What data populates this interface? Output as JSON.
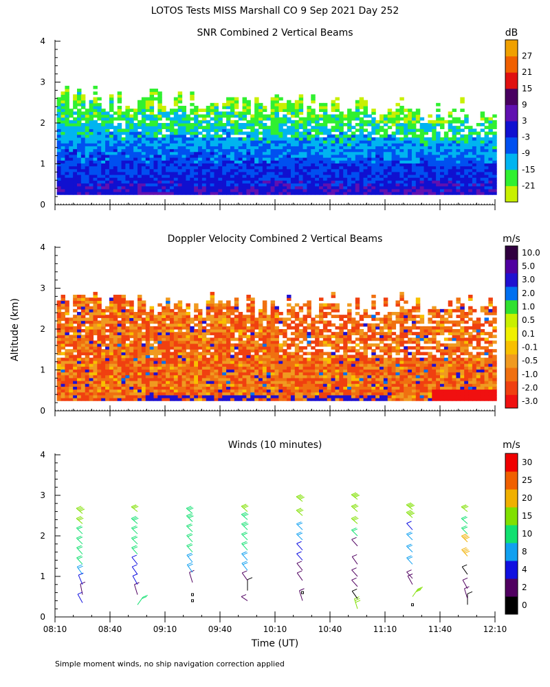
{
  "figure_title": "LOTOS Tests MISS Marshall CO   9 Sep 2021 Day 252",
  "shared_ylabel": "Altitude (km)",
  "footnote": "Simple moment winds, no ship navigation correction applied",
  "x_axis": {
    "label": "Time (UT)",
    "ticks": [
      "08:10",
      "08:40",
      "09:10",
      "09:40",
      "10:10",
      "10:40",
      "11:10",
      "11:40",
      "12:10"
    ],
    "range_minutes": [
      490,
      730
    ]
  },
  "y_axis": {
    "ticks": [
      "0",
      "1",
      "2",
      "3",
      "4"
    ],
    "range_km": [
      0,
      4
    ]
  },
  "colors": {
    "snr": [
      "#c8f000",
      "#30f030",
      "#00b4f0",
      "#0050f0",
      "#1010d0",
      "#6010b0",
      "#480060",
      "#e01010",
      "#f06000",
      "#f0a000"
    ],
    "velocity": [
      "#f01010",
      "#f04010",
      "#f07010",
      "#f09a20",
      "#f8c000",
      "#f0f000",
      "#c8f000",
      "#30e030",
      "#0070f0",
      "#2010d0",
      "#5000a0",
      "#300040"
    ],
    "winds": [
      "#000000",
      "#500060",
      "#1010e0",
      "#10a0f0",
      "#10e070",
      "#80e000",
      "#f0b000",
      "#f06000",
      "#f00000"
    ]
  },
  "chart_data": [
    {
      "type": "heatmap",
      "title": "SNR Combined 2 Vertical Beams",
      "units": "dB",
      "xlabel": "",
      "ylabel": "Altitude (km)",
      "xlim_minutes": [
        490,
        730
      ],
      "ylim": [
        0,
        4
      ],
      "colorbar_labels": [
        "-21",
        "-15",
        "-9",
        "-3",
        "3",
        "9",
        "15",
        "21",
        "27"
      ],
      "colorbar_values": [
        -21,
        -15,
        -9,
        -3,
        3,
        9,
        15,
        21,
        27
      ],
      "data_altitude_range_km": [
        0.25,
        2.8
      ],
      "profile_by_altitude_km": [
        {
          "alt": 0.3,
          "snr": 2
        },
        {
          "alt": 0.6,
          "snr": -2
        },
        {
          "alt": 1.0,
          "snr": -4
        },
        {
          "alt": 1.5,
          "snr": -9
        },
        {
          "alt": 2.0,
          "snr": -15
        },
        {
          "alt": 2.5,
          "snr": -19
        }
      ]
    },
    {
      "type": "heatmap",
      "title": "Doppler Velocity Combined 2 Vertical Beams",
      "units": "m/s",
      "xlabel": "",
      "ylabel": "Altitude (km)",
      "xlim_minutes": [
        490,
        730
      ],
      "ylim": [
        0,
        4
      ],
      "colorbar_labels": [
        "-3.0",
        "-2.0",
        "-1.0",
        "-0.5",
        "-0.1",
        "0.1",
        "0.5",
        "1.0",
        "2.0",
        "3.0",
        "5.0",
        "10.0"
      ],
      "colorbar_values": [
        -3.0,
        -2.0,
        -1.0,
        -0.5,
        -0.1,
        0.1,
        0.5,
        1.0,
        2.0,
        3.0,
        5.0,
        10.0
      ],
      "data_altitude_range_km": [
        0.25,
        2.8
      ],
      "typical_velocity_m_s": -0.8
    },
    {
      "type": "scatter",
      "title": "Winds (10 minutes)",
      "units": "m/s",
      "xlabel": "Time (UT)",
      "ylabel": "Altitude (km)",
      "xlim_minutes": [
        490,
        730
      ],
      "ylim": [
        0,
        4
      ],
      "colorbar_labels": [
        "0",
        "2",
        "4",
        "8",
        "10",
        "15",
        "20",
        "25",
        "30"
      ],
      "colorbar_values": [
        0,
        2,
        4,
        8,
        10,
        15,
        20,
        25,
        30
      ],
      "profiles": [
        {
          "time": "08:25",
          "t": 505,
          "winds": [
            {
              "alt": 0.35,
              "spd": 4,
              "dir": 230
            },
            {
              "alt": 0.55,
              "spd": 3,
              "dir": 200
            },
            {
              "alt": 0.8,
              "spd": 6,
              "dir": 220
            },
            {
              "alt": 1.05,
              "spd": 9,
              "dir": 240
            },
            {
              "alt": 1.3,
              "spd": 10,
              "dir": 250
            },
            {
              "alt": 1.55,
              "spd": 11,
              "dir": 250
            },
            {
              "alt": 1.8,
              "spd": 12,
              "dir": 255
            },
            {
              "alt": 2.05,
              "spd": 12,
              "dir": 255
            },
            {
              "alt": 2.3,
              "spd": 16,
              "dir": 260
            },
            {
              "alt": 2.55,
              "spd": 18,
              "dir": 260
            }
          ]
        },
        {
          "time": "08:55",
          "t": 535,
          "winds": [
            {
              "alt": 0.3,
              "spd": 10,
              "dir": 60
            },
            {
              "alt": 0.55,
              "spd": 3,
              "dir": 210
            },
            {
              "alt": 0.8,
              "spd": 5,
              "dir": 230
            },
            {
              "alt": 1.05,
              "spd": 6,
              "dir": 240
            },
            {
              "alt": 1.3,
              "spd": 7,
              "dir": 245
            },
            {
              "alt": 1.55,
              "spd": 10,
              "dir": 250
            },
            {
              "alt": 1.8,
              "spd": 11,
              "dir": 255
            },
            {
              "alt": 2.05,
              "spd": 12,
              "dir": 255
            },
            {
              "alt": 2.3,
              "spd": 14,
              "dir": 260
            },
            {
              "alt": 2.6,
              "spd": 17,
              "dir": 265
            }
          ]
        },
        {
          "time": "09:25",
          "t": 565,
          "winds": [
            {
              "alt": 0.4,
              "spd": 0,
              "dir": 0
            },
            {
              "alt": 0.55,
              "spd": 0,
              "dir": 0
            },
            {
              "alt": 0.85,
              "spd": 3,
              "dir": 330
            },
            {
              "alt": 1.1,
              "spd": 9,
              "dir": 240
            },
            {
              "alt": 1.35,
              "spd": 9,
              "dir": 245
            },
            {
              "alt": 1.6,
              "spd": 10,
              "dir": 250
            },
            {
              "alt": 1.85,
              "spd": 11,
              "dir": 250
            },
            {
              "alt": 2.1,
              "spd": 12,
              "dir": 255
            },
            {
              "alt": 2.35,
              "spd": 13,
              "dir": 255
            },
            {
              "alt": 2.55,
              "spd": 14,
              "dir": 260
            }
          ]
        },
        {
          "time": "09:55",
          "t": 595,
          "winds": [
            {
              "alt": 0.4,
              "spd": 2,
              "dir": 270
            },
            {
              "alt": 0.65,
              "spd": 1,
              "dir": 0
            },
            {
              "alt": 0.9,
              "spd": 3,
              "dir": 240
            },
            {
              "alt": 1.15,
              "spd": 8,
              "dir": 245
            },
            {
              "alt": 1.4,
              "spd": 9,
              "dir": 250
            },
            {
              "alt": 1.65,
              "spd": 10,
              "dir": 250
            },
            {
              "alt": 1.9,
              "spd": 11,
              "dir": 255
            },
            {
              "alt": 2.15,
              "spd": 13,
              "dir": 255
            },
            {
              "alt": 2.4,
              "spd": 14,
              "dir": 260
            },
            {
              "alt": 2.6,
              "spd": 15,
              "dir": 260
            }
          ]
        },
        {
          "time": "10:25",
          "t": 625,
          "winds": [
            {
              "alt": 0.4,
              "spd": 2,
              "dir": 210
            },
            {
              "alt": 0.6,
              "spd": 0,
              "dir": 0
            },
            {
              "alt": 0.9,
              "spd": 3,
              "dir": 240
            },
            {
              "alt": 1.15,
              "spd": 3,
              "dir": 245
            },
            {
              "alt": 1.4,
              "spd": 4,
              "dir": 250
            },
            {
              "alt": 1.65,
              "spd": 6,
              "dir": 250
            },
            {
              "alt": 1.9,
              "spd": 8,
              "dir": 255
            },
            {
              "alt": 2.15,
              "spd": 9,
              "dir": 255
            },
            {
              "alt": 2.5,
              "spd": 15,
              "dir": 260
            },
            {
              "alt": 2.85,
              "spd": 18,
              "dir": 265
            }
          ]
        },
        {
          "time": "10:55",
          "t": 655,
          "winds": [
            {
              "alt": 0.2,
              "spd": 16,
              "dir": 210
            },
            {
              "alt": 0.45,
              "spd": 1,
              "dir": 240
            },
            {
              "alt": 0.75,
              "spd": 3,
              "dir": 250
            },
            {
              "alt": 1.0,
              "spd": 2,
              "dir": 250
            },
            {
              "alt": 1.3,
              "spd": 2,
              "dir": 240
            },
            {
              "alt": 1.75,
              "spd": 3,
              "dir": 250
            },
            {
              "alt": 2.0,
              "spd": 12,
              "dir": 255
            },
            {
              "alt": 2.3,
              "spd": 15,
              "dir": 260
            },
            {
              "alt": 2.6,
              "spd": 17,
              "dir": 260
            },
            {
              "alt": 2.9,
              "spd": 19,
              "dir": 265
            }
          ]
        },
        {
          "time": "11:25",
          "t": 685,
          "winds": [
            {
              "alt": 0.3,
              "spd": 0,
              "dir": 0
            },
            {
              "alt": 0.5,
              "spd": 16,
              "dir": 60
            },
            {
              "alt": 0.8,
              "spd": 2,
              "dir": 230
            },
            {
              "alt": 0.95,
              "spd": 3,
              "dir": 250
            },
            {
              "alt": 1.3,
              "spd": 8,
              "dir": 250
            },
            {
              "alt": 1.6,
              "spd": 9,
              "dir": 255
            },
            {
              "alt": 1.9,
              "spd": 9,
              "dir": 255
            },
            {
              "alt": 2.15,
              "spd": 4,
              "dir": 250
            },
            {
              "alt": 2.45,
              "spd": 18,
              "dir": 260
            },
            {
              "alt": 2.65,
              "spd": 19,
              "dir": 265
            }
          ]
        },
        {
          "time": "11:55",
          "t": 715,
          "winds": [
            {
              "alt": 0.3,
              "spd": 1,
              "dir": 0
            },
            {
              "alt": 0.45,
              "spd": 2,
              "dir": 210
            },
            {
              "alt": 0.7,
              "spd": 2,
              "dir": 230
            },
            {
              "alt": 1.05,
              "spd": 1,
              "dir": 240
            },
            {
              "alt": 1.5,
              "spd": 20,
              "dir": 250
            },
            {
              "alt": 1.85,
              "spd": 20,
              "dir": 255
            },
            {
              "alt": 2.05,
              "spd": 10,
              "dir": 255
            },
            {
              "alt": 2.3,
              "spd": 10,
              "dir": 260
            },
            {
              "alt": 2.6,
              "spd": 17,
              "dir": 265
            }
          ]
        }
      ]
    }
  ]
}
